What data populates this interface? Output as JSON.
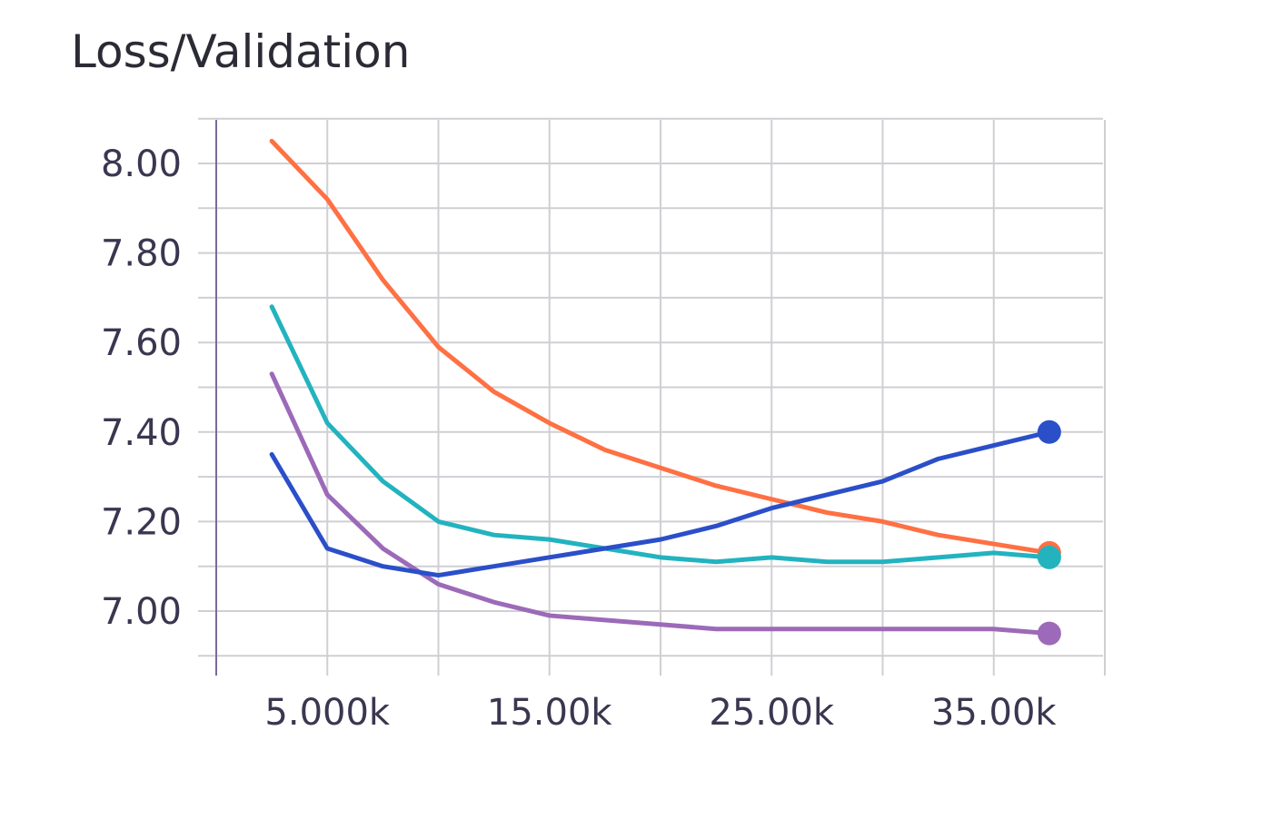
{
  "chart_data": {
    "type": "line",
    "title": "Loss/Validation",
    "xlabel": "",
    "ylabel": "",
    "xlim": [
      0,
      40000
    ],
    "ylim": [
      6.9,
      8.1
    ],
    "y_ticks": [
      7.0,
      7.2,
      7.4,
      7.6,
      7.8,
      8.0
    ],
    "y_tick_labels": [
      "7.00",
      "7.20",
      "7.40",
      "7.60",
      "7.80",
      "8.00"
    ],
    "x_ticks": [
      5000,
      15000,
      25000,
      35000
    ],
    "x_tick_labels": [
      "5.000k",
      "15.00k",
      "25.00k",
      "35.00k"
    ],
    "grid": true,
    "series": [
      {
        "color": "#ff7043",
        "x": [
          2500,
          5000,
          7500,
          10000,
          12500,
          15000,
          17500,
          20000,
          22500,
          25000,
          27500,
          30000,
          32500,
          35000,
          37500
        ],
        "values": [
          8.05,
          7.92,
          7.74,
          7.59,
          7.49,
          7.42,
          7.36,
          7.32,
          7.28,
          7.25,
          7.22,
          7.2,
          7.17,
          7.15,
          7.13
        ]
      },
      {
        "color": "#22b3bf",
        "x": [
          2500,
          5000,
          7500,
          10000,
          12500,
          15000,
          17500,
          20000,
          22500,
          25000,
          27500,
          30000,
          32500,
          35000,
          37500
        ],
        "values": [
          7.68,
          7.42,
          7.29,
          7.2,
          7.17,
          7.16,
          7.14,
          7.12,
          7.11,
          7.12,
          7.11,
          7.11,
          7.12,
          7.13,
          7.12
        ]
      },
      {
        "color": "#9c6ab8",
        "x": [
          2500,
          5000,
          7500,
          10000,
          12500,
          15000,
          17500,
          20000,
          22500,
          25000,
          27500,
          30000,
          32500,
          35000,
          37500
        ],
        "values": [
          7.53,
          7.26,
          7.14,
          7.06,
          7.02,
          6.99,
          6.98,
          6.97,
          6.96,
          6.96,
          6.96,
          6.96,
          6.96,
          6.96,
          6.95
        ]
      },
      {
        "color": "#2b4fc9",
        "x": [
          2500,
          5000,
          7500,
          10000,
          12500,
          15000,
          17500,
          20000,
          22500,
          25000,
          27500,
          30000,
          32500,
          35000,
          37500
        ],
        "values": [
          7.35,
          7.14,
          7.1,
          7.08,
          7.1,
          7.12,
          7.14,
          7.16,
          7.19,
          7.23,
          7.26,
          7.29,
          7.34,
          7.37,
          7.4
        ]
      }
    ]
  }
}
